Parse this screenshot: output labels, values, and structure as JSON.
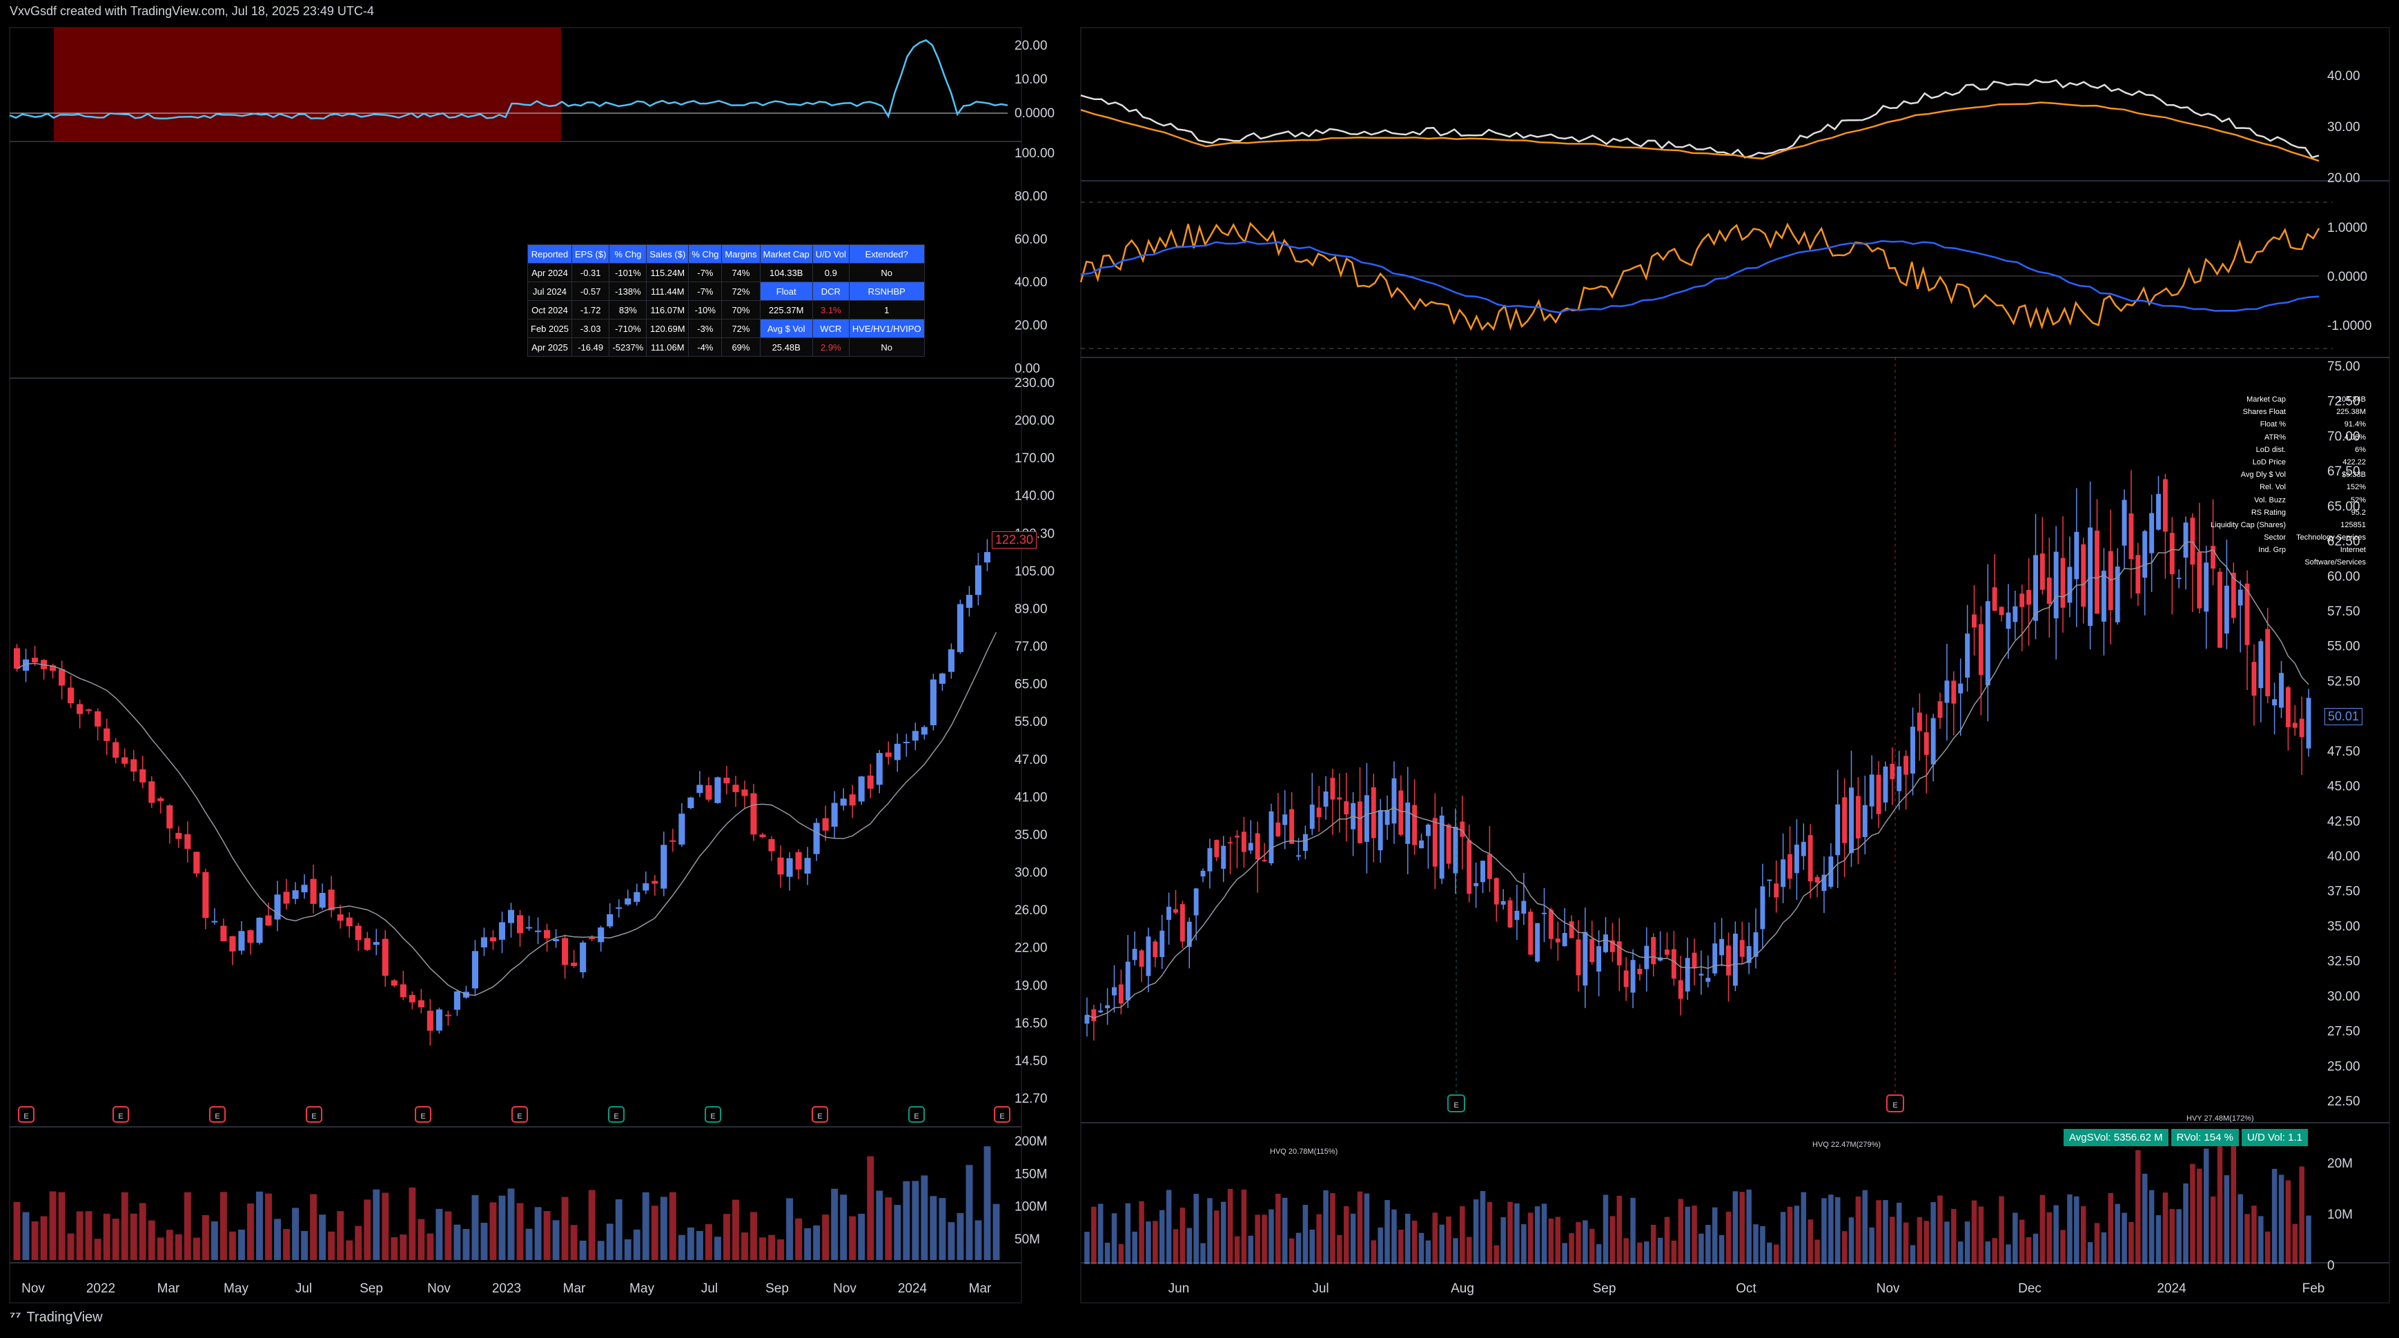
{
  "header": {
    "text": "VxvGsdf created with TradingView.com, Jul 18, 2025 23:49 UTC-4"
  },
  "footer": {
    "brand": "TradingView",
    "logo_icon": "tradingview-logo-icon"
  },
  "colors": {
    "up": "#5b8def",
    "down": "#f23645",
    "ma": "#9598a1",
    "rs_line": "#4fc3f7",
    "oscillator_fast": "#f7931a",
    "oscillator_slow": "#2962ff",
    "vol_green": "#4caf50",
    "vol_gray": "#787b86",
    "badge_green": "#089981"
  },
  "left_panel": {
    "top_indicator": {
      "ticks": [
        "20.00",
        "10.00",
        "0.0000"
      ]
    },
    "table_axis": {
      "ticks": [
        "100.00",
        "80.00",
        "60.00",
        "40.00",
        "20.00",
        "0.00"
      ]
    },
    "table": {
      "headers": [
        "Reported",
        "EPS ($)",
        "% Chg",
        "Sales ($)",
        "% Chg",
        "Margins",
        "Market Cap",
        "U/D Vol",
        "Extended?"
      ],
      "rows": [
        [
          "Apr 2024",
          "-0.31",
          "-101%",
          "115.24M",
          "-7%",
          "74%",
          "104.33B",
          "0.9",
          "No"
        ],
        [
          "Jul 2024",
          "-0.57",
          "-138%",
          "111.44M",
          "-7%",
          "72%",
          "Float",
          "DCR",
          "RSNHBP"
        ],
        [
          "Oct 2024",
          "-1.72",
          "83%",
          "116.07M",
          "-10%",
          "70%",
          "225.37M",
          "3.1%",
          "1"
        ],
        [
          "Feb 2025",
          "-3.03",
          "-710%",
          "120.69M",
          "-3%",
          "72%",
          "Avg $ Vol",
          "WCR",
          "HVE/HV1/HVIPO"
        ],
        [
          "Apr 2025",
          "-16.49",
          "-5237%",
          "111.06M",
          "-4%",
          "69%",
          "25.48B",
          "2.9%",
          "No"
        ]
      ]
    },
    "price_axis": {
      "ticks": [
        "230.00",
        "200.00",
        "170.00",
        "140.00",
        "122.30",
        "105.00",
        "89.00",
        "77.00",
        "65.00",
        "55.00",
        "47.00",
        "41.00",
        "35.00",
        "30.00",
        "26.00",
        "22.00",
        "19.00",
        "16.50",
        "14.50",
        "12.70"
      ]
    },
    "last_price": "122.30",
    "volume_axis": {
      "ticks": [
        "200M",
        "150M",
        "100M",
        "50M"
      ]
    },
    "x_labels": [
      "Nov",
      "2022",
      "Mar",
      "May",
      "Jul",
      "Sep",
      "Nov",
      "2023",
      "Mar",
      "May",
      "Jul",
      "Sep",
      "Nov",
      "2024",
      "Mar"
    ],
    "earnings_marker": "E"
  },
  "right_panel": {
    "top_indicator": {
      "ticks": [
        "40.00",
        "30.00",
        "20.00"
      ]
    },
    "oscillator": {
      "ticks": [
        "1.0000",
        "0.0000",
        "-1.0000"
      ]
    },
    "price_axis": {
      "ticks": [
        "75.00",
        "72.50",
        "70.00",
        "67.50",
        "65.00",
        "62.50",
        "60.00",
        "57.50",
        "55.00",
        "52.50",
        "50.01",
        "47.50",
        "45.00",
        "42.50",
        "40.00",
        "37.50",
        "35.00",
        "32.50",
        "30.00",
        "27.50",
        "25.00",
        "22.50"
      ]
    },
    "last_price": "50.01",
    "volume_axis": {
      "ticks": [
        "20M",
        "10M",
        "0"
      ]
    },
    "x_labels": [
      "Jun",
      "Jul",
      "Aug",
      "Sep",
      "Oct",
      "Nov",
      "Dec",
      "2024",
      "Feb"
    ],
    "stats": [
      [
        "Market Cap",
        "104.34B"
      ],
      [
        "Shares Float",
        "225.38M"
      ],
      [
        "Float %",
        "91.4%"
      ],
      [
        "ATR%",
        "4.06%"
      ],
      [
        "LoD dist.",
        "6%"
      ],
      [
        "LoD Price",
        "422.22"
      ],
      [
        "Avg Dly $ Vol",
        "$5.33B"
      ],
      [
        "Rel. Vol",
        "152%"
      ],
      [
        "Vol. Buzz",
        "52%"
      ],
      [
        "RS Rating",
        "95.2"
      ],
      [
        "Liquidity Cap (Shares)",
        "125851"
      ],
      [
        "Sector",
        "Technology Services"
      ],
      [
        "Ind. Grp",
        "Internet Software/Services"
      ]
    ],
    "volume_badges": [
      "AvgSVol: 5356.62 M",
      "RVol: 154 %",
      "U/D Vol: 1.1"
    ],
    "volume_annotations": [
      "HVQ 20.78M(115%)",
      "HVQ 22.47M(279%)",
      "HVY 27.48M(172%)"
    ],
    "earnings_marker": "E"
  },
  "chart_data": [
    {
      "type": "candlestick",
      "panel": "left",
      "x": [
        "Nov",
        "2022",
        "Mar",
        "May",
        "Jul",
        "Sep",
        "Nov",
        "2023",
        "Mar",
        "May",
        "Jul",
        "Sep",
        "Nov",
        "2024",
        "Mar"
      ],
      "approx_close": [
        77,
        60,
        42,
        22,
        30,
        24,
        17,
        26,
        22,
        30,
        47,
        32,
        44,
        60,
        122.3
      ],
      "ylim": [
        12.7,
        230
      ],
      "log_scale": true
    },
    {
      "type": "candlestick",
      "panel": "right",
      "x": [
        "Jun",
        "Jul",
        "Aug",
        "Sep",
        "Oct",
        "Nov",
        "Dec",
        "2024",
        "Feb"
      ],
      "approx_close": [
        27.5,
        41,
        44,
        34,
        31,
        43,
        57,
        63,
        50.01
      ],
      "ylim": [
        22.5,
        75
      ]
    },
    {
      "type": "bar",
      "panel": "left-volume",
      "ylim": [
        0,
        200
      ],
      "unit": "M"
    },
    {
      "type": "bar",
      "panel": "right-volume",
      "ylim": [
        0,
        25
      ],
      "unit": "M"
    }
  ]
}
